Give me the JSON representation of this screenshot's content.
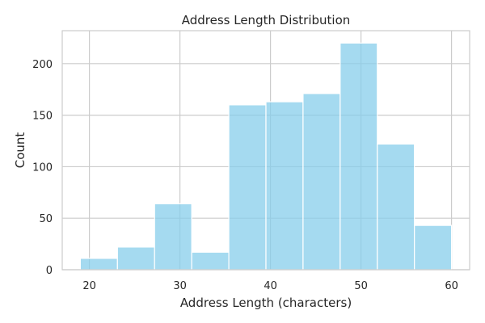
{
  "chart_data": {
    "type": "bar",
    "title": "Address Length Distribution",
    "xlabel": "Address Length (characters)",
    "ylabel": "Count",
    "xlim": [
      17,
      62
    ],
    "ylim": [
      0,
      232
    ],
    "xticks": [
      20,
      30,
      40,
      50,
      60
    ],
    "yticks": [
      0,
      50,
      100,
      150,
      200
    ],
    "bins": [
      {
        "x0": 19.0,
        "x1": 23.1,
        "count": 11
      },
      {
        "x0": 23.1,
        "x1": 27.2,
        "count": 22
      },
      {
        "x0": 27.2,
        "x1": 31.3,
        "count": 64
      },
      {
        "x0": 31.3,
        "x1": 35.4,
        "count": 17
      },
      {
        "x0": 35.4,
        "x1": 39.5,
        "count": 160
      },
      {
        "x0": 39.5,
        "x1": 43.6,
        "count": 163
      },
      {
        "x0": 43.6,
        "x1": 47.7,
        "count": 171
      },
      {
        "x0": 47.7,
        "x1": 51.8,
        "count": 220
      },
      {
        "x0": 51.8,
        "x1": 55.9,
        "count": 122
      },
      {
        "x0": 55.9,
        "x1": 60.0,
        "count": 43
      }
    ],
    "grid": true,
    "colors": {
      "bar": "#87ceeb",
      "bar_edge": "#ffffff",
      "grid": "#cccccc",
      "frame": "#cccccc"
    }
  }
}
